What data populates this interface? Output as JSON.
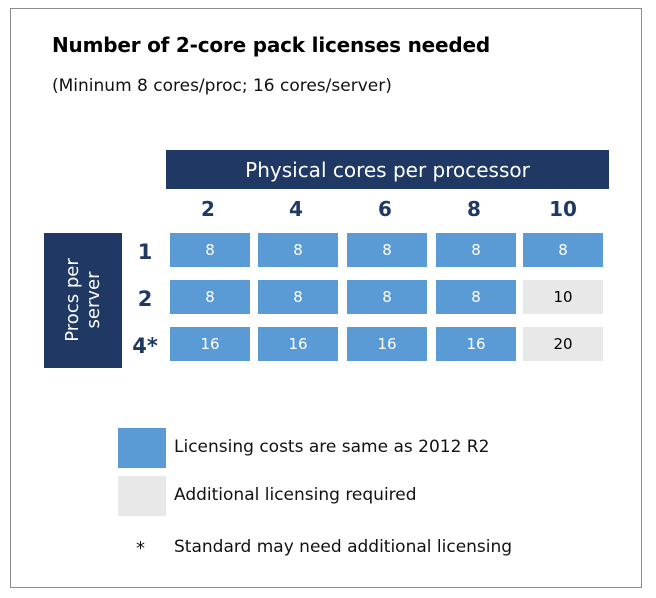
{
  "title": "Number of 2-core pack licenses needed",
  "subtitle": "(Mininum 8 cores/proc; 16 cores/server)",
  "columns_header": "Physical cores per processor",
  "rows_header": "Procs per server",
  "columns": [
    "2",
    "4",
    "6",
    "8",
    "10"
  ],
  "rows": [
    {
      "label": "1",
      "cells": [
        {
          "value": "8",
          "type": "same"
        },
        {
          "value": "8",
          "type": "same"
        },
        {
          "value": "8",
          "type": "same"
        },
        {
          "value": "8",
          "type": "same"
        },
        {
          "value": "8",
          "type": "same"
        }
      ]
    },
    {
      "label": "2",
      "cells": [
        {
          "value": "8",
          "type": "same"
        },
        {
          "value": "8",
          "type": "same"
        },
        {
          "value": "8",
          "type": "same"
        },
        {
          "value": "8",
          "type": "same"
        },
        {
          "value": "10",
          "type": "extra"
        }
      ]
    },
    {
      "label": "4*",
      "cells": [
        {
          "value": "16",
          "type": "same"
        },
        {
          "value": "16",
          "type": "same"
        },
        {
          "value": "16",
          "type": "same"
        },
        {
          "value": "16",
          "type": "same"
        },
        {
          "value": "20",
          "type": "extra"
        }
      ]
    }
  ],
  "legend": {
    "same_label": "Licensing costs are same as 2012 R2",
    "extra_label": "Additional licensing required",
    "asterisk_symbol": "*",
    "asterisk_label": "Standard may need additional licensing"
  },
  "colors": {
    "header_navy": "#1f3864",
    "same_blue": "#5b9bd5",
    "extra_gray": "#e8e8e8"
  }
}
